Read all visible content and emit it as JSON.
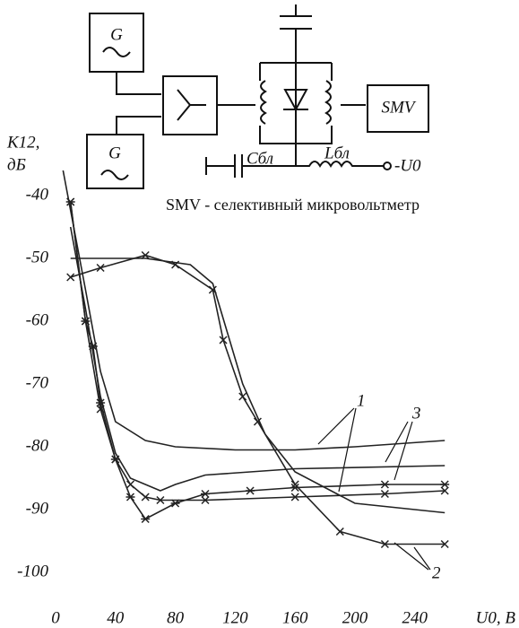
{
  "diagram": {
    "generator_1": "G",
    "generator_2": "G",
    "meter": "SMV",
    "capacitor": "Cбл",
    "inductor": "Lбл",
    "bias": "-U0",
    "note": "SMV - селективный микровольтметр"
  },
  "chart_data": {
    "type": "line",
    "ylabel": [
      "K12,",
      "дБ"
    ],
    "xlabel": "U0, B",
    "xlim": [
      0,
      300
    ],
    "xticks": [
      0,
      40,
      80,
      120,
      160,
      200,
      240
    ],
    "ylim": [
      -105,
      -35
    ],
    "yticks": [
      -40,
      -50,
      -60,
      -70,
      -80,
      -90,
      -100
    ],
    "grid": false,
    "color": "#222222",
    "series": [
      {
        "marker": "none",
        "x": [
          5,
          20,
          30,
          40,
          60,
          80,
          120,
          160,
          200,
          260
        ],
        "values": [
          -36,
          -55,
          -68,
          -76,
          -79,
          -80,
          -80.5,
          -80.5,
          -80,
          -79
        ]
      },
      {
        "marker": "none",
        "x": [
          10,
          20,
          30,
          40,
          50,
          70,
          80,
          100,
          160,
          260
        ],
        "values": [
          -45,
          -58,
          -72,
          -81,
          -85,
          -87,
          -86,
          -84.5,
          -83.5,
          -83
        ]
      },
      {
        "marker": "star",
        "x": [
          10,
          20,
          25,
          30,
          40,
          50,
          60,
          80,
          100,
          130,
          160,
          220,
          260
        ],
        "values": [
          -41,
          -60,
          -64,
          -73,
          -82,
          -88,
          -91.5,
          -89,
          -87.5,
          -87,
          -86.5,
          -86,
          -86
        ]
      },
      {
        "marker": "cross",
        "x": [
          10,
          20,
          30,
          40,
          50,
          60,
          70,
          100,
          160,
          220,
          260
        ],
        "values": [
          -41,
          -60,
          -74,
          -82,
          -86,
          -88,
          -88.5,
          -88.5,
          -88,
          -87.5,
          -87
        ]
      },
      {
        "marker": "none",
        "x": [
          10,
          40,
          60,
          90,
          105,
          115,
          125,
          140,
          160,
          200,
          260
        ],
        "values": [
          -50,
          -50,
          -50,
          -51,
          -54,
          -62,
          -70,
          -78,
          -84,
          -89,
          -90.5
        ]
      },
      {
        "marker": "cross",
        "x": [
          10,
          30,
          60,
          80,
          105,
          112,
          125,
          135,
          160,
          190,
          220,
          260
        ],
        "values": [
          -53,
          -51.5,
          -49.5,
          -51,
          -55,
          -63,
          -72,
          -76,
          -86,
          -93.5,
          -95.5,
          -95.5
        ]
      }
    ],
    "annotations": [
      "1",
      "2",
      "3"
    ]
  }
}
